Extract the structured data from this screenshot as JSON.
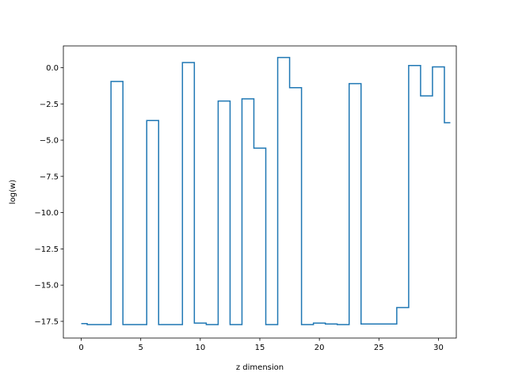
{
  "chart_data": {
    "type": "line",
    "drawstyle": "steps-mid",
    "title": "",
    "xlabel": "z dimension",
    "ylabel": "log(w)",
    "xlim": [
      -1.5,
      31.5
    ],
    "ylim": [
      -18.65,
      1.5
    ],
    "xticks": [
      0,
      5,
      10,
      15,
      20,
      25,
      30
    ],
    "yticks": [
      0.0,
      -2.5,
      -5.0,
      -7.5,
      -10.0,
      -12.5,
      -15.0,
      -17.5
    ],
    "ytick_labels": [
      "0.0",
      "−2.5",
      "−5.0",
      "−7.5",
      "−10.0",
      "−12.5",
      "−15.0",
      "−17.5"
    ],
    "grid": false,
    "series": [
      {
        "color": "#1f77b4",
        "x": [
          0,
          1,
          2,
          3,
          4,
          5,
          6,
          7,
          8,
          9,
          10,
          11,
          12,
          13,
          14,
          15,
          16,
          17,
          18,
          19,
          20,
          21,
          22,
          23,
          24,
          25,
          26,
          27,
          28,
          29,
          30,
          31
        ],
        "values": [
          -17.65,
          -17.72,
          -17.72,
          -0.95,
          -17.72,
          -17.72,
          -3.65,
          -17.72,
          -17.72,
          0.35,
          -17.62,
          -17.72,
          -2.3,
          -17.72,
          -2.15,
          -5.55,
          -17.72,
          0.7,
          -1.38,
          -17.72,
          -17.62,
          -17.68,
          -17.72,
          -1.1,
          -17.68,
          -17.68,
          -17.68,
          -16.55,
          0.15,
          -1.95,
          0.05,
          -3.8
        ]
      }
    ]
  }
}
